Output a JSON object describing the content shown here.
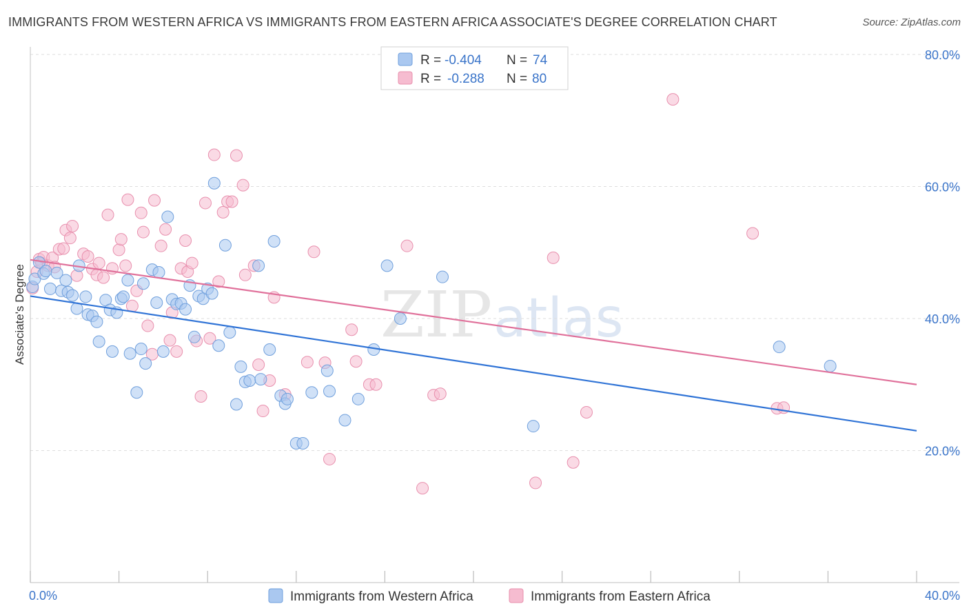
{
  "title": "IMMIGRANTS FROM WESTERN AFRICA VS IMMIGRANTS FROM EASTERN AFRICA ASSOCIATE'S DEGREE CORRELATION CHART",
  "source": "Source: ZipAtlas.com",
  "watermark": {
    "zip": "ZIP",
    "atlas": "atlas"
  },
  "colors": {
    "blue_fill": "#aac8f0",
    "blue_stroke": "#6f9fdc",
    "blue_line": "#2f73d6",
    "pink_fill": "#f6bcd0",
    "pink_stroke": "#e88fad",
    "pink_line": "#e0709a",
    "tick_text": "#3a74c9",
    "grid": "#dddddd"
  },
  "legend": {
    "rows": [
      {
        "r_label": "R =",
        "r_value": "-0.404",
        "n_label": "N =",
        "n_value": "74",
        "color": "blue"
      },
      {
        "r_label": "R =",
        "r_value": "-0.288",
        "n_label": "N =",
        "n_value": "80",
        "color": "pink"
      }
    ]
  },
  "chart_data": {
    "type": "scatter",
    "title": "IMMIGRANTS FROM WESTERN AFRICA VS IMMIGRANTS FROM EASTERN AFRICA ASSOCIATE'S DEGREE CORRELATION CHART",
    "xlabel": "",
    "ylabel": "Associate's Degree",
    "xlim": [
      0,
      40
    ],
    "ylim": [
      0,
      80
    ],
    "x_tick_labels": [
      "0.0%",
      "40.0%"
    ],
    "y_ticks": [
      20,
      40,
      60,
      80
    ],
    "y_tick_labels": [
      "20.0%",
      "40.0%",
      "60.0%",
      "80.0%"
    ],
    "grid": true,
    "series": [
      {
        "name": "Immigrants from Western Africa",
        "color": "blue",
        "R": -0.404,
        "N": 74,
        "trend": {
          "x": [
            0,
            40
          ],
          "y": [
            43.4,
            23.0
          ]
        },
        "points": [
          [
            0.1,
            44.8
          ],
          [
            0.2,
            46.0
          ],
          [
            0.4,
            48.5
          ],
          [
            0.6,
            46.8
          ],
          [
            0.7,
            47.2
          ],
          [
            0.9,
            44.5
          ],
          [
            1.2,
            46.9
          ],
          [
            1.4,
            44.2
          ],
          [
            1.6,
            45.8
          ],
          [
            1.7,
            44.0
          ],
          [
            1.9,
            43.5
          ],
          [
            2.1,
            41.5
          ],
          [
            2.2,
            48.0
          ],
          [
            2.5,
            43.3
          ],
          [
            2.6,
            40.6
          ],
          [
            2.8,
            40.4
          ],
          [
            3.0,
            39.5
          ],
          [
            3.1,
            36.5
          ],
          [
            3.4,
            42.8
          ],
          [
            3.6,
            41.3
          ],
          [
            3.7,
            35.0
          ],
          [
            3.9,
            40.9
          ],
          [
            4.1,
            43.0
          ],
          [
            4.2,
            43.3
          ],
          [
            4.4,
            45.8
          ],
          [
            4.5,
            34.7
          ],
          [
            4.8,
            28.8
          ],
          [
            5.0,
            35.4
          ],
          [
            5.1,
            45.3
          ],
          [
            5.2,
            33.2
          ],
          [
            5.5,
            47.4
          ],
          [
            5.7,
            42.4
          ],
          [
            5.8,
            47.0
          ],
          [
            6.0,
            35.0
          ],
          [
            6.2,
            55.4
          ],
          [
            6.4,
            42.9
          ],
          [
            6.6,
            42.2
          ],
          [
            6.8,
            42.3
          ],
          [
            7.0,
            41.4
          ],
          [
            7.2,
            45.0
          ],
          [
            7.4,
            37.2
          ],
          [
            7.6,
            43.4
          ],
          [
            7.8,
            43.0
          ],
          [
            8.0,
            44.5
          ],
          [
            8.2,
            43.8
          ],
          [
            8.3,
            60.5
          ],
          [
            8.5,
            35.9
          ],
          [
            8.8,
            51.1
          ],
          [
            9.0,
            37.9
          ],
          [
            9.3,
            27.0
          ],
          [
            9.5,
            32.7
          ],
          [
            9.7,
            30.4
          ],
          [
            9.9,
            30.6
          ],
          [
            10.3,
            48.0
          ],
          [
            10.4,
            30.8
          ],
          [
            10.8,
            35.3
          ],
          [
            11.0,
            51.7
          ],
          [
            11.3,
            28.3
          ],
          [
            11.5,
            27.1
          ],
          [
            11.6,
            27.8
          ],
          [
            12.0,
            21.1
          ],
          [
            12.3,
            21.1
          ],
          [
            12.7,
            28.8
          ],
          [
            13.4,
            32.1
          ],
          [
            13.5,
            29.0
          ],
          [
            14.2,
            24.6
          ],
          [
            14.8,
            27.8
          ],
          [
            15.5,
            35.3
          ],
          [
            16.1,
            48.0
          ],
          [
            16.7,
            40.0
          ],
          [
            18.6,
            46.3
          ],
          [
            22.7,
            23.7
          ],
          [
            33.8,
            35.7
          ],
          [
            36.1,
            32.8
          ]
        ]
      },
      {
        "name": "Immigrants from Eastern Africa",
        "color": "pink",
        "R": -0.288,
        "N": 80,
        "trend": {
          "x": [
            0,
            40
          ],
          "y": [
            48.9,
            30.0
          ]
        },
        "points": [
          [
            0.1,
            44.6
          ],
          [
            0.3,
            47.1
          ],
          [
            0.4,
            49.0
          ],
          [
            0.5,
            48.4
          ],
          [
            0.6,
            49.3
          ],
          [
            0.8,
            48.0
          ],
          [
            1.0,
            49.2
          ],
          [
            1.1,
            47.8
          ],
          [
            1.3,
            50.5
          ],
          [
            1.5,
            50.6
          ],
          [
            1.6,
            53.4
          ],
          [
            1.8,
            52.2
          ],
          [
            1.9,
            54.0
          ],
          [
            2.1,
            46.5
          ],
          [
            2.4,
            49.8
          ],
          [
            2.6,
            49.4
          ],
          [
            2.8,
            47.5
          ],
          [
            3.0,
            46.6
          ],
          [
            3.1,
            48.4
          ],
          [
            3.3,
            46.2
          ],
          [
            3.5,
            55.7
          ],
          [
            3.7,
            47.6
          ],
          [
            4.0,
            50.4
          ],
          [
            4.1,
            52.0
          ],
          [
            4.3,
            48.0
          ],
          [
            4.4,
            58.0
          ],
          [
            4.6,
            41.9
          ],
          [
            4.8,
            44.2
          ],
          [
            5.0,
            56.0
          ],
          [
            5.1,
            53.1
          ],
          [
            5.3,
            38.9
          ],
          [
            5.5,
            34.6
          ],
          [
            5.6,
            57.9
          ],
          [
            5.9,
            51.0
          ],
          [
            6.1,
            53.5
          ],
          [
            6.3,
            36.7
          ],
          [
            6.4,
            40.9
          ],
          [
            6.6,
            35.0
          ],
          [
            6.8,
            47.6
          ],
          [
            7.0,
            51.8
          ],
          [
            7.1,
            47.1
          ],
          [
            7.3,
            48.4
          ],
          [
            7.5,
            36.6
          ],
          [
            7.7,
            28.2
          ],
          [
            7.9,
            57.5
          ],
          [
            8.1,
            37.0
          ],
          [
            8.3,
            64.8
          ],
          [
            8.5,
            45.6
          ],
          [
            8.7,
            56.1
          ],
          [
            8.9,
            57.7
          ],
          [
            9.1,
            57.7
          ],
          [
            9.3,
            64.7
          ],
          [
            9.6,
            60.2
          ],
          [
            9.7,
            46.6
          ],
          [
            10.1,
            48.0
          ],
          [
            10.3,
            33.0
          ],
          [
            10.5,
            26.0
          ],
          [
            10.8,
            30.6
          ],
          [
            11.0,
            43.2
          ],
          [
            11.5,
            28.5
          ],
          [
            12.5,
            33.4
          ],
          [
            12.8,
            50.1
          ],
          [
            13.3,
            33.3
          ],
          [
            13.5,
            18.7
          ],
          [
            14.5,
            38.3
          ],
          [
            14.7,
            33.5
          ],
          [
            15.3,
            30.0
          ],
          [
            15.6,
            30.0
          ],
          [
            17.0,
            51.0
          ],
          [
            17.7,
            14.3
          ],
          [
            18.2,
            28.4
          ],
          [
            18.5,
            28.6
          ],
          [
            22.8,
            15.1
          ],
          [
            23.6,
            49.2
          ],
          [
            24.5,
            18.2
          ],
          [
            25.1,
            25.8
          ],
          [
            29.0,
            73.2
          ],
          [
            32.6,
            52.9
          ],
          [
            33.7,
            26.4
          ],
          [
            34.0,
            26.5
          ]
        ]
      }
    ]
  }
}
